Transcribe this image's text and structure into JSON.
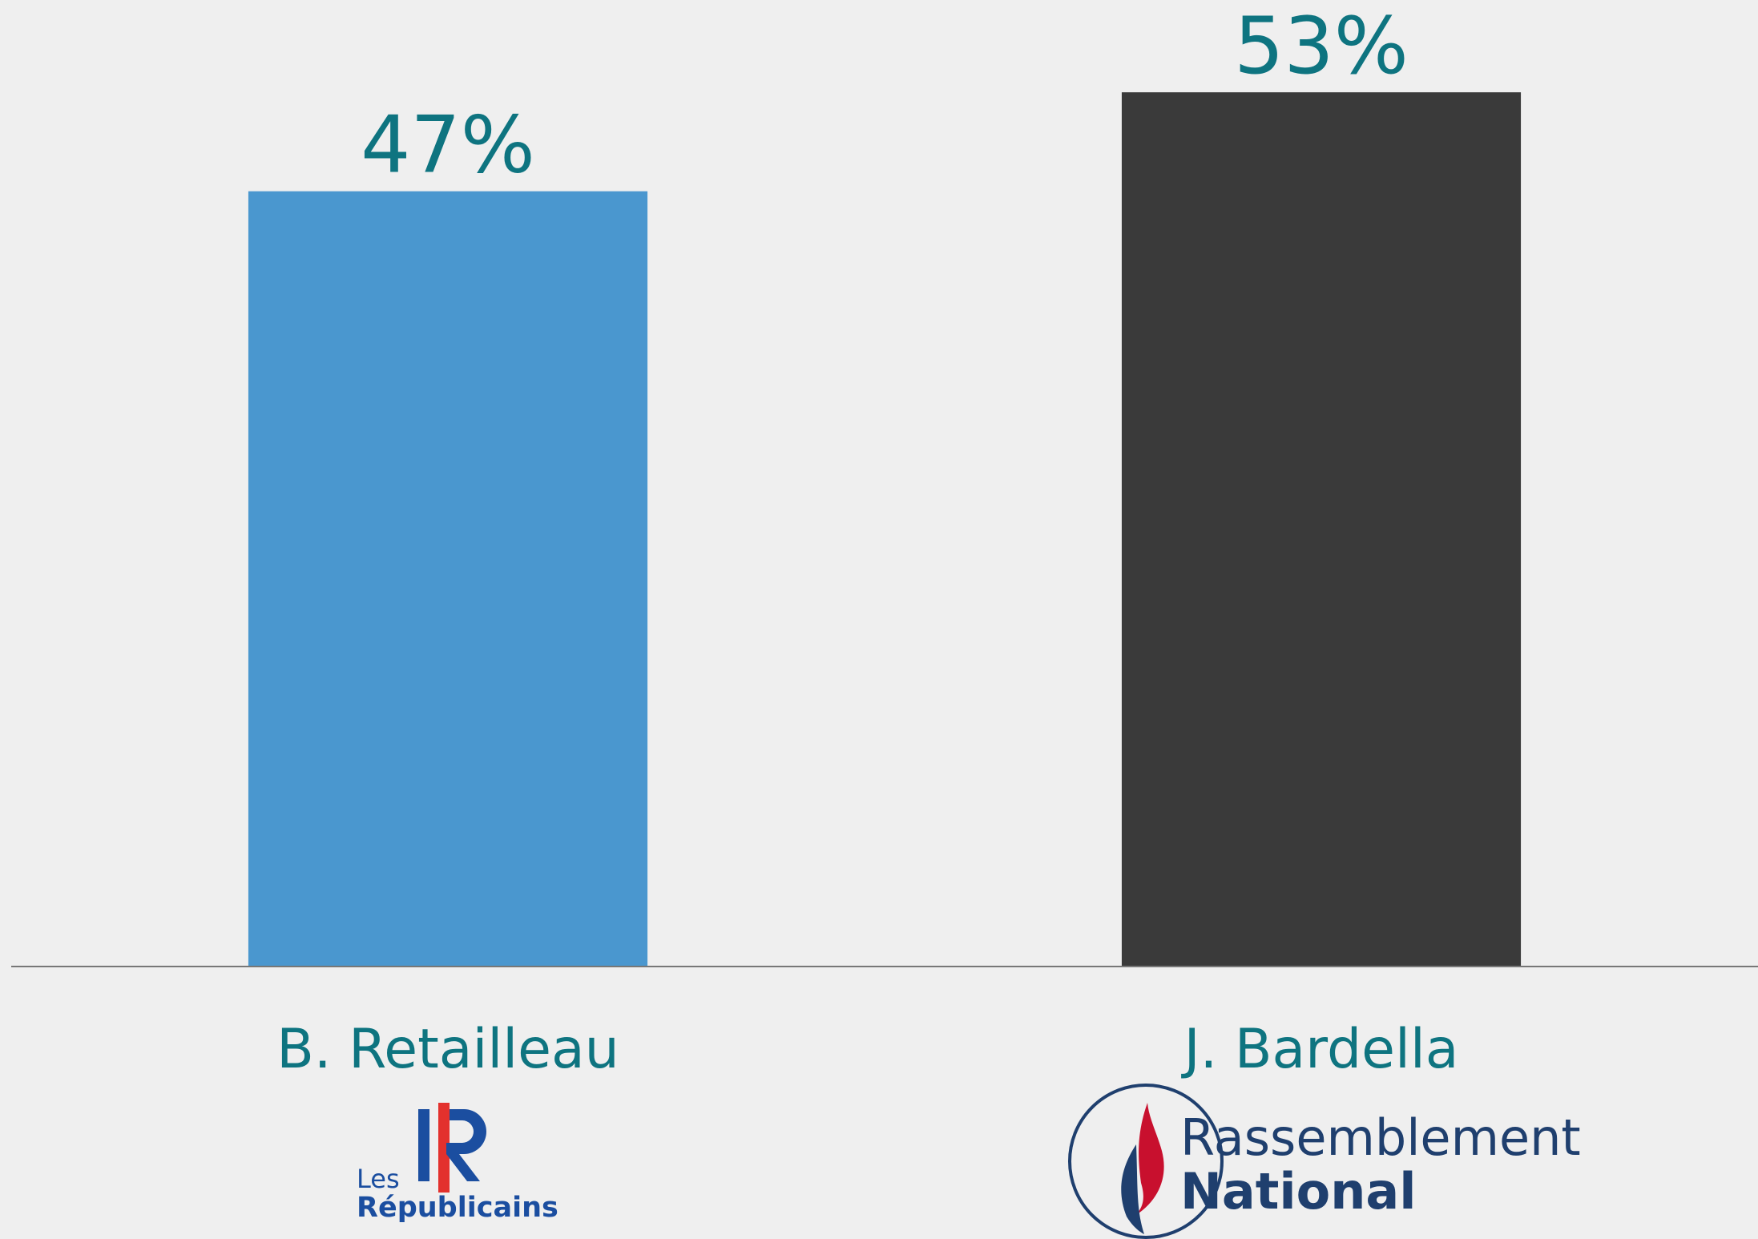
{
  "chart_data": {
    "type": "bar",
    "categories": [
      "B. Retailleau",
      "J. Bardella"
    ],
    "values": [
      47,
      53
    ],
    "value_labels": [
      "47%",
      "53%"
    ],
    "colors": [
      "#4a97cf",
      "#3a3a3a"
    ],
    "ylim": [
      0,
      55
    ],
    "logos": [
      [
        "Les",
        "Républicains"
      ],
      [
        "Rassemblement",
        "National"
      ]
    ]
  }
}
